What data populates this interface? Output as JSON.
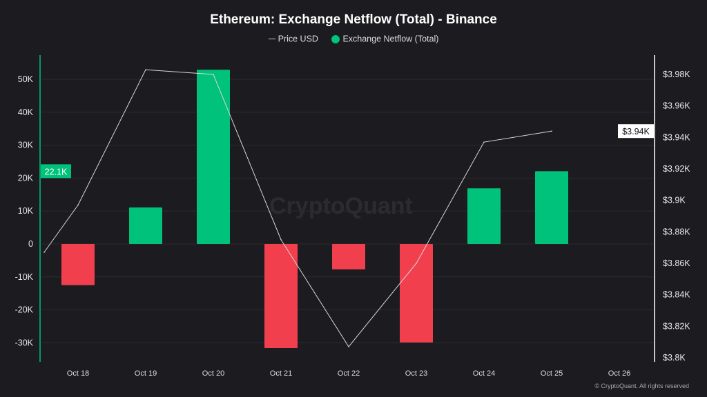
{
  "chart_data": {
    "type": "bar",
    "title": "Ethereum: Exchange Netflow (Total) - Binance",
    "legend": [
      {
        "label": "Price USD",
        "kind": "line"
      },
      {
        "label": "Exchange Netflow (Total)",
        "kind": "dot"
      }
    ],
    "categories": [
      "Oct 18",
      "Oct 19",
      "Oct 20",
      "Oct 21",
      "Oct 22",
      "Oct 23",
      "Oct 24",
      "Oct 25",
      "Oct 26"
    ],
    "series": [
      {
        "name": "Exchange Netflow (Total)",
        "type": "bar",
        "axis": "left",
        "values": [
          -12500,
          11100,
          52900,
          -31600,
          -7700,
          -29900,
          16900,
          22100,
          null
        ]
      },
      {
        "name": "Price USD",
        "type": "line",
        "axis": "right",
        "x": [
          "Oct 17 12:00",
          "Oct 18",
          "Oct 19",
          "Oct 20",
          "Oct 21",
          "Oct 22",
          "Oct 23",
          "Oct 24",
          "Oct 25"
        ],
        "values": [
          3867,
          3897,
          3983,
          3980,
          3875,
          3807,
          3860,
          3937,
          3944
        ]
      }
    ],
    "left_axis": {
      "ticks": [
        "-30K",
        "-20K",
        "-10K",
        "0",
        "10K",
        "20K",
        "30K",
        "40K",
        "50K"
      ],
      "tick_values": [
        -30000,
        -20000,
        -10000,
        0,
        10000,
        20000,
        30000,
        40000,
        50000
      ],
      "range": [
        -35000,
        58000
      ],
      "current_label": "22.1K"
    },
    "right_axis": {
      "ticks": [
        "$3.8K",
        "$3.82K",
        "$3.84K",
        "$3.86K",
        "$3.88K",
        "$3.9K",
        "$3.92K",
        "$3.94K",
        "$3.96K",
        "$3.98K"
      ],
      "tick_values": [
        3800,
        3820,
        3840,
        3860,
        3880,
        3900,
        3920,
        3940,
        3960,
        3980
      ],
      "current_label": "$3.94K"
    },
    "grid": true,
    "legend_placement": "top-center",
    "colors": {
      "positive": "#00c27a",
      "negative": "#f23f4e",
      "price": "#d8d8d8",
      "background": "#1c1c20"
    }
  },
  "watermark": "CryptoQuant",
  "copyright": "© CryptoQuant. All rights reserved"
}
